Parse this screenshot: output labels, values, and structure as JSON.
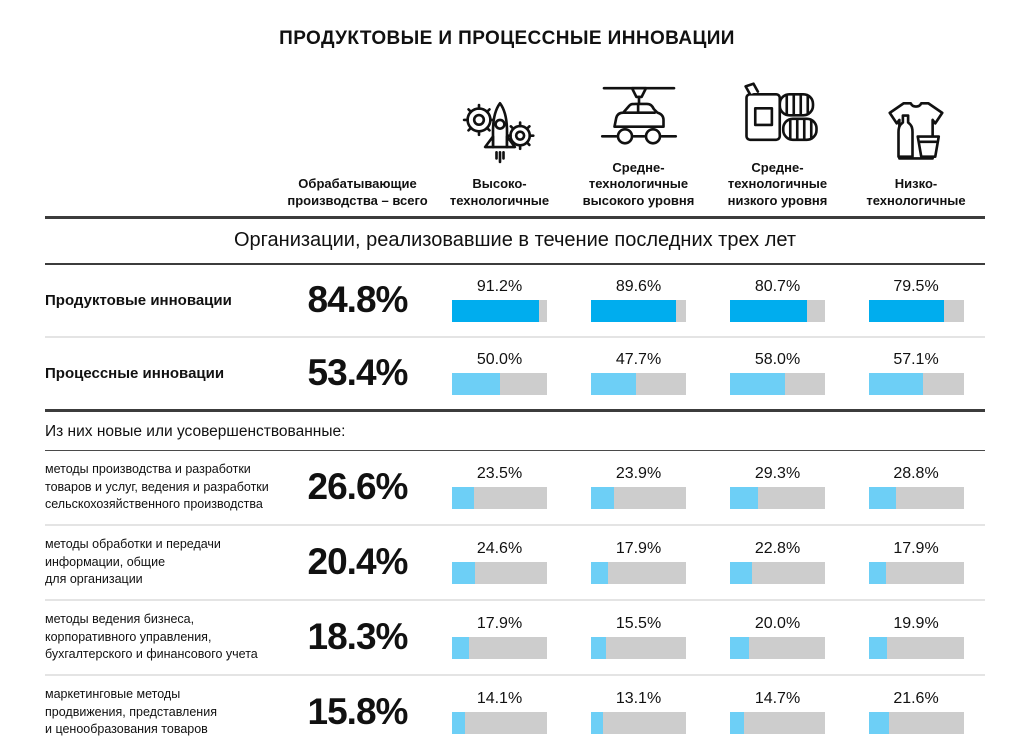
{
  "title": "ПРОДУКТОВЫЕ И ПРОЦЕССНЫЕ ИННОВАЦИИ",
  "section_header": "Организации, реализовавшие в течение последних трех лет",
  "subsection_header": "Из них новые или усовершенствованные:",
  "colors": {
    "primary_bar": "#00ADEE",
    "secondary_bar": "#6DCFF6",
    "track": "#CDCDCD"
  },
  "columns": [
    {
      "label": "Обрабатывающие\nпроизводства – всего",
      "icon": null
    },
    {
      "label": "Высоко-\nтехнологичные",
      "icon": "rocket-gears-icon"
    },
    {
      "label": "Средне-\nтехнологичные\nвысокого уровня",
      "icon": "car-assembly-icon"
    },
    {
      "label": "Средне-\nтехнологичные\nнизкого уровня",
      "icon": "fuel-can-tires-icon"
    },
    {
      "label": "Низко-\nтехнологичные",
      "icon": "tshirt-bottle-icon"
    }
  ],
  "rows": [
    {
      "label": "Продуктовые инновации",
      "total": "84.8%",
      "bars": [
        {
          "label": "91.2%",
          "value": 91.2
        },
        {
          "label": "89.6%",
          "value": 89.6
        },
        {
          "label": "80.7%",
          "value": 80.7
        },
        {
          "label": "79.5%",
          "value": 79.5
        }
      ]
    },
    {
      "label": "Процессные инновации",
      "total": "53.4%",
      "bars": [
        {
          "label": "50.0%",
          "value": 50.0
        },
        {
          "label": "47.7%",
          "value": 47.7
        },
        {
          "label": "58.0%",
          "value": 58.0
        },
        {
          "label": "57.1%",
          "value": 57.1
        }
      ]
    },
    {
      "label": "методы производства и разработки\nтоваров и услуг, ведения и разработки\nсельскохозяйственного производства",
      "total": "26.6%",
      "bars": [
        {
          "label": "23.5%",
          "value": 23.5
        },
        {
          "label": "23.9%",
          "value": 23.9
        },
        {
          "label": "29.3%",
          "value": 29.3
        },
        {
          "label": "28.8%",
          "value": 28.8
        }
      ]
    },
    {
      "label": "методы обработки и передачи\nинформации, общие\nдля организации",
      "total": "20.4%",
      "bars": [
        {
          "label": "24.6%",
          "value": 24.6
        },
        {
          "label": "17.9%",
          "value": 17.9
        },
        {
          "label": "22.8%",
          "value": 22.8
        },
        {
          "label": "17.9%",
          "value": 17.9
        }
      ]
    },
    {
      "label": "методы ведения бизнеса,\nкорпоративного управления,\nбухгалтерского и финансового учета",
      "total": "18.3%",
      "bars": [
        {
          "label": "17.9%",
          "value": 17.9
        },
        {
          "label": "15.5%",
          "value": 15.5
        },
        {
          "label": "20.0%",
          "value": 20.0
        },
        {
          "label": "19.9%",
          "value": 19.9
        }
      ]
    },
    {
      "label": "маркетинговые методы\nпродвижения, представления\nи ценообразования товаров",
      "total": "15.8%",
      "bars": [
        {
          "label": "14.1%",
          "value": 14.1
        },
        {
          "label": "13.1%",
          "value": 13.1
        },
        {
          "label": "14.7%",
          "value": 14.7
        },
        {
          "label": "21.6%",
          "value": 21.6
        }
      ]
    }
  ],
  "chart_data": {
    "type": "bar",
    "title": "ПРОДУКТОВЫЕ И ПРОЦЕССНЫЕ ИННОВАЦИИ",
    "subtitle": "Организации, реализовавшие в течение последних трех лет",
    "unit": "%",
    "xlim": [
      0,
      100
    ],
    "categories": [
      "Обрабатывающие производства – всего",
      "Высоко-технологичные",
      "Средне-технологичные высокого уровня",
      "Средне-технологичные низкого уровня",
      "Низко-технологичные"
    ],
    "series": [
      {
        "name": "Продуктовые инновации",
        "values": [
          84.8,
          91.2,
          89.6,
          80.7,
          79.5
        ]
      },
      {
        "name": "Процессные инновации",
        "values": [
          53.4,
          50.0,
          47.7,
          58.0,
          57.1
        ]
      },
      {
        "name": "Из них новые или усовершенствованные: методы производства и разработки товаров и услуг, ведения и разработки сельскохозяйственного производства",
        "values": [
          26.6,
          23.5,
          23.9,
          29.3,
          28.8
        ]
      },
      {
        "name": "Из них новые или усовершенствованные: методы обработки и передачи информации, общие для организации",
        "values": [
          20.4,
          24.6,
          17.9,
          22.8,
          17.9
        ]
      },
      {
        "name": "Из них новые или усовершенствованные: методы ведения бизнеса, корпоративного управления, бухгалтерского и финансового учета",
        "values": [
          18.3,
          17.9,
          15.5,
          20.0,
          19.9
        ]
      },
      {
        "name": "Из них новые или усовершенствованные: маркетинговые методы продвижения, представления и ценообразования товаров",
        "values": [
          15.8,
          14.1,
          13.1,
          14.7,
          21.6
        ]
      }
    ]
  }
}
